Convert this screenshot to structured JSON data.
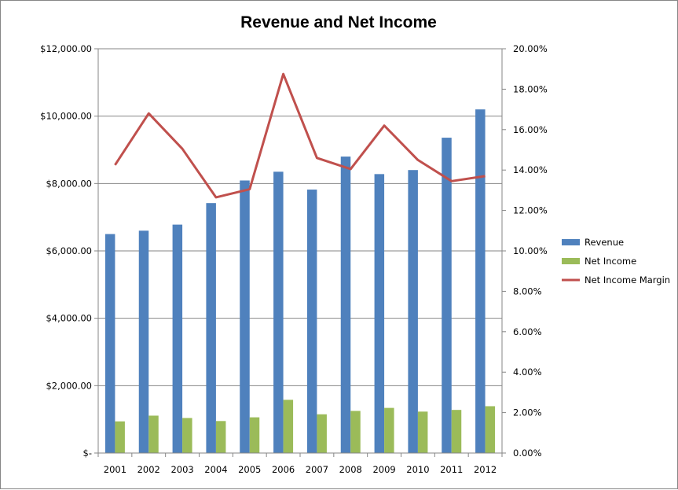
{
  "chart_data": {
    "type": "bar",
    "title": "Revenue and Net Income",
    "categories": [
      "2001",
      "2002",
      "2003",
      "2004",
      "2005",
      "2006",
      "2007",
      "2008",
      "2009",
      "2010",
      "2011",
      "2012"
    ],
    "series": [
      {
        "name": "Revenue",
        "type": "bar",
        "axis": "left",
        "color": "#4F81BD",
        "values": [
          6500,
          6600,
          6780,
          7420,
          8090,
          8350,
          7820,
          8800,
          8280,
          8400,
          9360,
          10200
        ]
      },
      {
        "name": "Net Income",
        "type": "bar",
        "axis": "left",
        "color": "#9BBB59",
        "values": [
          940,
          1110,
          1040,
          950,
          1060,
          1580,
          1150,
          1250,
          1340,
          1230,
          1280,
          1390
        ]
      },
      {
        "name": "Net Income Margin",
        "type": "line",
        "axis": "right",
        "color": "#C0504D",
        "values": [
          0.1425,
          0.168,
          0.1505,
          0.1265,
          0.1305,
          0.1875,
          0.146,
          0.1405,
          0.162,
          0.145,
          0.1345,
          0.137
        ]
      }
    ],
    "y_left": {
      "min": 0,
      "max": 12000,
      "step": 2000,
      "tick_labels": [
        "$-",
        "$2,000.00",
        "$4,000.00",
        "$6,000.00",
        "$8,000.00",
        "$10,000.00",
        "$12,000.00"
      ]
    },
    "y_right": {
      "min": 0,
      "max": 0.2,
      "step": 0.02,
      "tick_labels": [
        "0.00%",
        "2.00%",
        "4.00%",
        "6.00%",
        "8.00%",
        "10.00%",
        "12.00%",
        "14.00%",
        "16.00%",
        "18.00%",
        "20.00%"
      ]
    },
    "grid": "horizontal-major-left",
    "legend_position": "right"
  }
}
